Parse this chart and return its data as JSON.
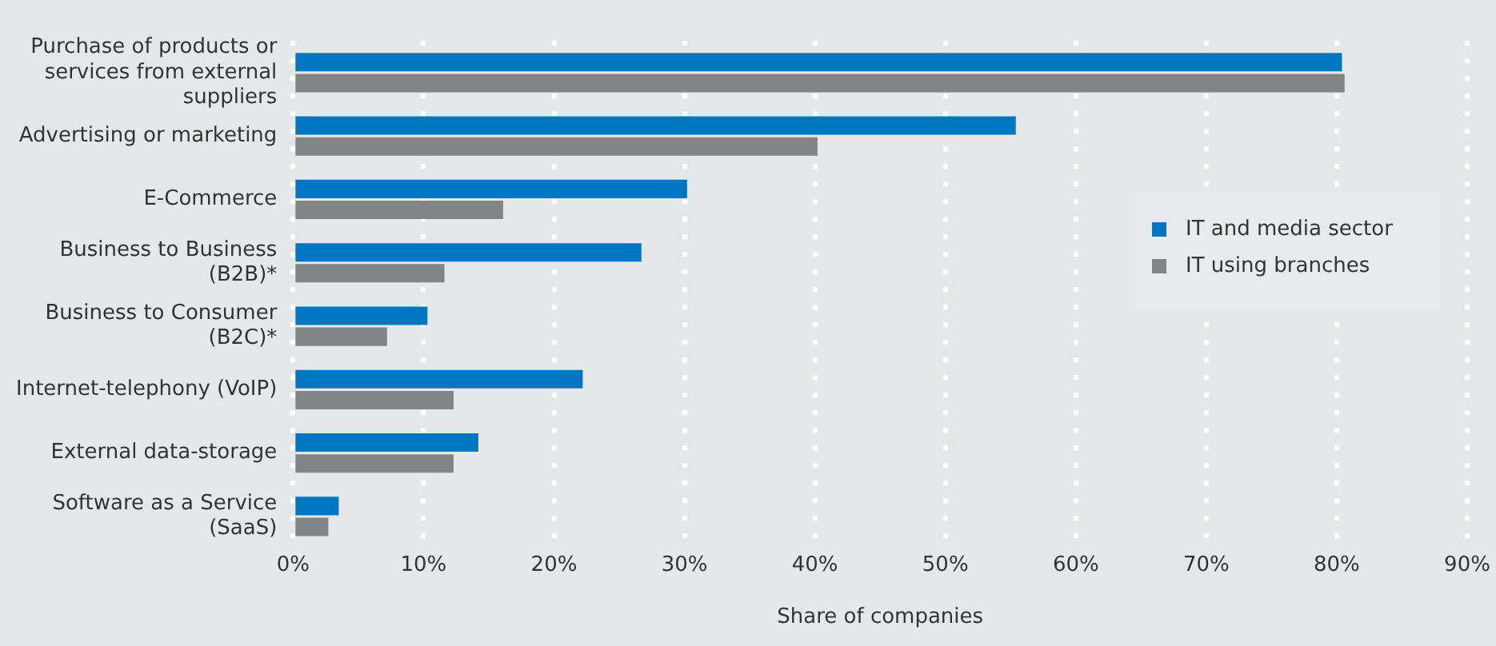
{
  "chart_data": {
    "type": "bar",
    "orientation": "horizontal",
    "xlabel": "Share of companies",
    "categories": [
      "Purchase of products or services from external suppliers",
      "Advertising or marketing",
      "E-Commerce",
      "Business to Business (B2B)*",
      "Business to Consumer (B2C)*",
      "Internet-telephony (VoIP)",
      "External data-storage",
      "Software as a Service (SaaS)"
    ],
    "series": [
      {
        "name": "IT and media sector",
        "color": "#0077c0",
        "values": [
          80.4,
          55.4,
          30.2,
          26.7,
          10.3,
          22.2,
          14.2,
          3.5
        ]
      },
      {
        "name": "IT using branches",
        "color": "#838488",
        "values": [
          80.6,
          40.2,
          16.1,
          11.6,
          7.2,
          12.3,
          12.3,
          2.7
        ]
      }
    ],
    "xlim": [
      0,
      90
    ],
    "xticks": [
      {
        "value": 0,
        "label": "0%"
      },
      {
        "value": 10,
        "label": "10%"
      },
      {
        "value": 20,
        "label": "20%"
      },
      {
        "value": 30,
        "label": "30%"
      },
      {
        "value": 40,
        "label": "40%"
      },
      {
        "value": 50,
        "label": "50%"
      },
      {
        "value": 60,
        "label": "60%"
      },
      {
        "value": 70,
        "label": "70%"
      },
      {
        "value": 80,
        "label": "80%"
      },
      {
        "value": 90,
        "label": "90%"
      }
    ],
    "grid": "x",
    "legend": "right"
  }
}
